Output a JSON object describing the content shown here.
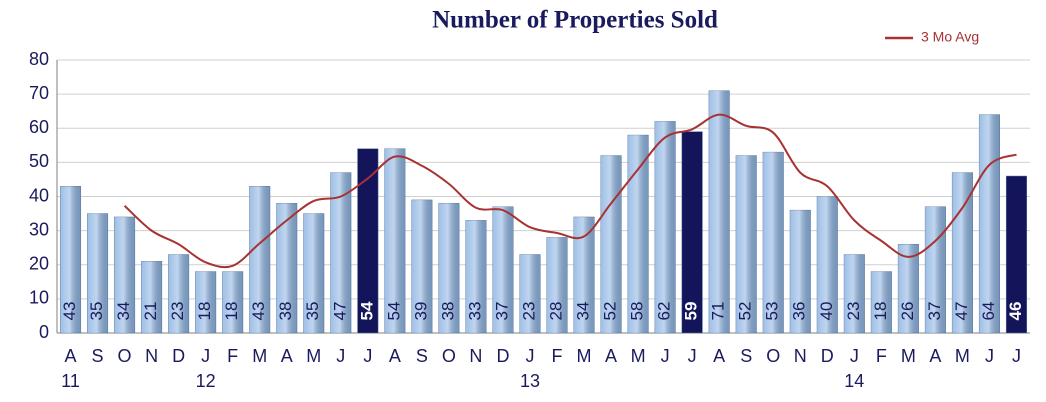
{
  "chart_data": {
    "type": "bar",
    "title": "Number of Properties Sold",
    "categories": [
      "A",
      "S",
      "O",
      "N",
      "D",
      "J",
      "F",
      "M",
      "A",
      "M",
      "J",
      "J",
      "A",
      "S",
      "O",
      "N",
      "D",
      "J",
      "F",
      "M",
      "A",
      "M",
      "J",
      "J",
      "A",
      "S",
      "O",
      "N",
      "D",
      "J",
      "F",
      "M",
      "A",
      "M",
      "J",
      "J"
    ],
    "year_labels": [
      "11",
      null,
      null,
      null,
      null,
      "12",
      null,
      null,
      null,
      null,
      null,
      null,
      null,
      null,
      null,
      null,
      null,
      "13",
      null,
      null,
      null,
      null,
      null,
      null,
      null,
      null,
      null,
      null,
      null,
      "14",
      null,
      null,
      null,
      null,
      null,
      null
    ],
    "values": [
      43,
      35,
      34,
      21,
      23,
      18,
      18,
      43,
      38,
      35,
      47,
      54,
      54,
      39,
      38,
      33,
      37,
      23,
      28,
      34,
      52,
      58,
      62,
      59,
      71,
      52,
      53,
      36,
      40,
      23,
      18,
      26,
      37,
      47,
      64,
      46
    ],
    "colors": [
      "#8db4e2",
      "#8db4e2",
      "#8db4e2",
      "#8db4e2",
      "#8db4e2",
      "#8db4e2",
      "#8db4e2",
      "#8db4e2",
      "#8db4e2",
      "#8db4e2",
      "#8db4e2",
      "#14145a",
      "#8db4e2",
      "#8db4e2",
      "#8db4e2",
      "#8db4e2",
      "#8db4e2",
      "#8db4e2",
      "#8db4e2",
      "#8db4e2",
      "#8db4e2",
      "#8db4e2",
      "#8db4e2",
      "#14145a",
      "#8db4e2",
      "#8db4e2",
      "#8db4e2",
      "#8db4e2",
      "#8db4e2",
      "#8db4e2",
      "#8db4e2",
      "#8db4e2",
      "#8db4e2",
      "#8db4e2",
      "#8db4e2",
      "#14145a"
    ],
    "series": [
      {
        "name": "3 Mo Avg",
        "color": "#a83232",
        "values": [
          null,
          null,
          37.3,
          30,
          26,
          20.7,
          19.7,
          26.3,
          33,
          38.7,
          40,
          45.3,
          51.7,
          49,
          43.7,
          36.7,
          36,
          31,
          29.3,
          28.3,
          38,
          48,
          57.3,
          59.7,
          64,
          60.7,
          58.7,
          47,
          43,
          33,
          27,
          22.3,
          27,
          36.7,
          49.3,
          52.3
        ]
      }
    ],
    "ylim": [
      0,
      80
    ],
    "yticks": [
      0,
      10,
      20,
      30,
      40,
      50,
      60,
      70,
      80
    ],
    "grid": true,
    "legend": "top-right"
  }
}
